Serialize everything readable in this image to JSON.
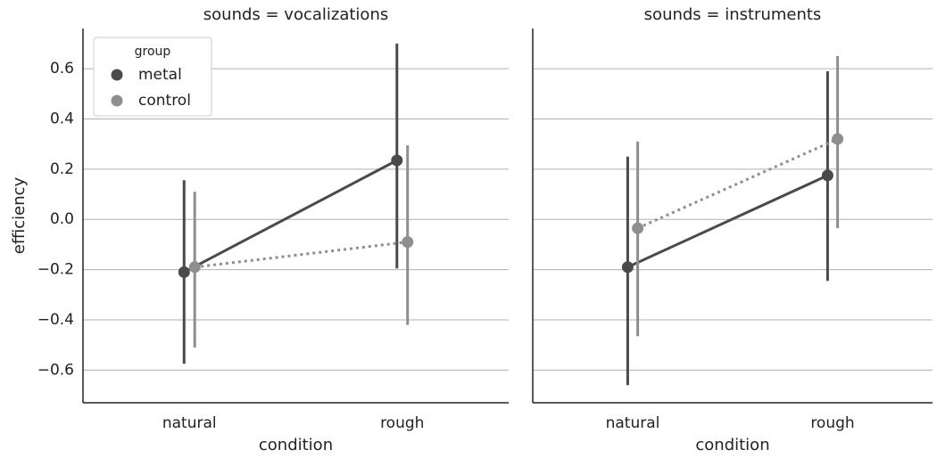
{
  "chart_data": [
    {
      "type": "pointplot",
      "title": "sounds = vocalizations",
      "xlabel": "condition",
      "ylabel": "efficiency",
      "categories": [
        "natural",
        "rough"
      ],
      "series": [
        {
          "name": "metal",
          "color": "#4a4a4a",
          "linestyle": "solid",
          "values": [
            -0.21,
            0.235
          ],
          "ci": [
            [
              -0.575,
              0.156
            ],
            [
              -0.195,
              0.7
            ]
          ]
        },
        {
          "name": "control",
          "color": "#8e8e8e",
          "linestyle": "dotted",
          "values": [
            -0.19,
            -0.09
          ],
          "ci": [
            [
              -0.51,
              0.11
            ],
            [
              -0.42,
              0.295
            ]
          ]
        }
      ],
      "ylim": [
        -0.73,
        0.76
      ],
      "yticks": [
        {
          "value": -0.6,
          "label": "−0.6"
        },
        {
          "value": -0.4,
          "label": "−0.4"
        },
        {
          "value": -0.2,
          "label": "−0.2"
        },
        {
          "value": 0,
          "label": "0.0"
        },
        0.2,
        0.4,
        0.6
      ],
      "grid": true,
      "legend_title": "group",
      "legend": "upper left"
    },
    {
      "type": "pointplot",
      "title": "sounds = instruments",
      "xlabel": "condition",
      "categories": [
        "natural",
        "rough"
      ],
      "series": [
        {
          "name": "metal",
          "color": "#4a4a4a",
          "linestyle": "solid",
          "values": [
            -0.19,
            0.175
          ],
          "ci": [
            [
              -0.66,
              0.25
            ],
            [
              -0.245,
              0.59
            ]
          ]
        },
        {
          "name": "control",
          "color": "#8e8e8e",
          "linestyle": "dotted",
          "values": [
            -0.035,
            0.32
          ],
          "ci": [
            [
              -0.465,
              0.31
            ],
            [
              -0.035,
              0.65
            ]
          ]
        }
      ],
      "grid": true
    }
  ]
}
